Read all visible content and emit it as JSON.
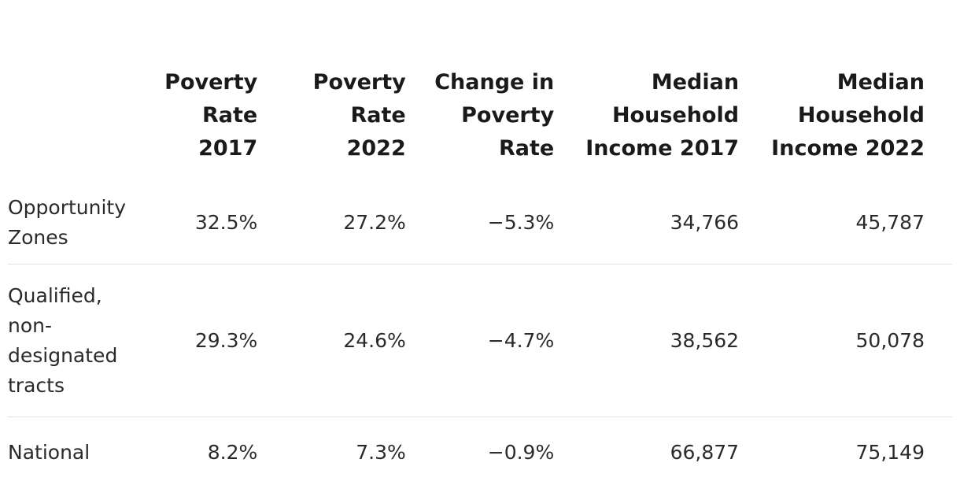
{
  "table": {
    "headers": {
      "label": "",
      "poverty_2017": "Poverty Rate 2017",
      "poverty_2022": "Poverty Rate 2022",
      "change": "Change in Poverty Rate",
      "income_2017": "Median Household Income 2017",
      "income_2022": "Median Household Income 2022"
    },
    "rows": [
      {
        "label": "Opportunity Zones",
        "poverty_2017": "32.5%",
        "poverty_2022": "27.2%",
        "change": "−5.3%",
        "income_2017": "34,766",
        "income_2022": "45,787"
      },
      {
        "label": "Qualified, non-designated tracts",
        "poverty_2017": "29.3%",
        "poverty_2022": "24.6%",
        "change": "−4.7%",
        "income_2017": "38,562",
        "income_2022": "50,078"
      },
      {
        "label": "National",
        "poverty_2017": "8.2%",
        "poverty_2022": "7.3%",
        "change": "−0.9%",
        "income_2017": "66,877",
        "income_2022": "75,149"
      }
    ]
  },
  "colors": {
    "text": "#1f1f1f",
    "divider": "#e2e2e2",
    "background": "#ffffff"
  }
}
